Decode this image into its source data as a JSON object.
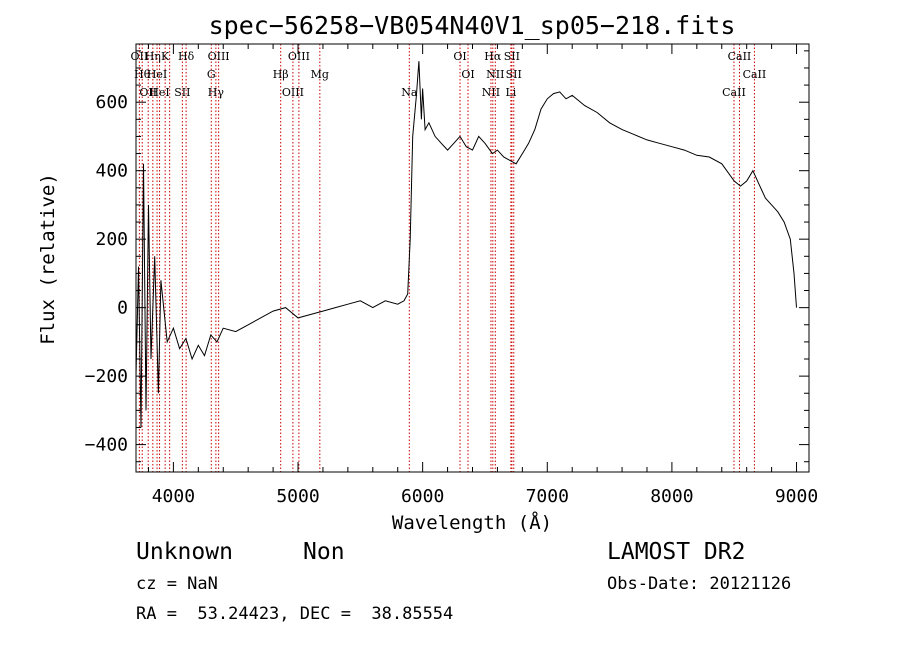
{
  "chart_data": {
    "type": "line",
    "title": "spec−56258−VB054N40V1_sp05−218.fits",
    "xlabel": "Wavelength (Å)",
    "ylabel": "Flux (relative)",
    "xlim": [
      3700,
      9100
    ],
    "ylim": [
      -480,
      770
    ],
    "xticks": [
      4000,
      5000,
      6000,
      7000,
      8000,
      9000
    ],
    "yticks": [
      -400,
      -200,
      0,
      200,
      400,
      600
    ],
    "ytick_labels": [
      "−400",
      "−200",
      "0",
      "200",
      "400",
      "600"
    ],
    "series": [
      {
        "x": [
          3700,
          3720,
          3740,
          3760,
          3780,
          3800,
          3820,
          3850,
          3880,
          3900,
          3950,
          4000,
          4050,
          4100,
          4150,
          4200,
          4250,
          4300,
          4350,
          4400,
          4500,
          4600,
          4700,
          4800,
          4900,
          5000,
          5100,
          5200,
          5300,
          5400,
          5500,
          5600,
          5700,
          5800,
          5850,
          5880,
          5900,
          5920,
          5950,
          5970,
          5990,
          6000,
          6020,
          6050,
          6100,
          6150,
          6200,
          6250,
          6300,
          6350,
          6400,
          6450,
          6500,
          6560,
          6600,
          6650,
          6700,
          6750,
          6800,
          6850,
          6900,
          6950,
          7000,
          7050,
          7100,
          7150,
          7200,
          7300,
          7400,
          7500,
          7600,
          7700,
          7800,
          7900,
          8000,
          8100,
          8200,
          8300,
          8400,
          8500,
          8550,
          8600,
          8650,
          8700,
          8750,
          8800,
          8850,
          8900,
          8950,
          8980,
          9000
        ],
        "y": [
          -200,
          120,
          -350,
          420,
          -300,
          300,
          -150,
          150,
          -250,
          80,
          -100,
          -60,
          -120,
          -90,
          -150,
          -110,
          -140,
          -80,
          -100,
          -60,
          -70,
          -50,
          -30,
          -10,
          0,
          -30,
          -20,
          -10,
          0,
          10,
          20,
          0,
          20,
          10,
          20,
          40,
          200,
          500,
          620,
          720,
          550,
          640,
          520,
          540,
          500,
          480,
          460,
          480,
          500,
          470,
          460,
          500,
          480,
          450,
          460,
          440,
          430,
          420,
          450,
          480,
          520,
          580,
          610,
          625,
          630,
          610,
          620,
          590,
          570,
          540,
          520,
          505,
          490,
          480,
          470,
          460,
          445,
          440,
          420,
          370,
          355,
          370,
          400,
          360,
          320,
          300,
          280,
          250,
          200,
          100,
          0
        ]
      }
    ],
    "lines": [
      {
        "x": 3727,
        "labels": [
          "OII"
        ]
      },
      {
        "x": 3750,
        "labels": [
          "Hθ"
        ]
      },
      {
        "x": 3798,
        "labels": [
          "OII"
        ]
      },
      {
        "x": 3835,
        "labels": [
          "Hη"
        ]
      },
      {
        "x": 3869,
        "labels": [
          "HeI"
        ]
      },
      {
        "x": 3889,
        "labels": [
          "HeI"
        ]
      },
      {
        "x": 3934,
        "labels": [
          "K"
        ]
      },
      {
        "x": 3970,
        "labels": []
      },
      {
        "x": 4072,
        "labels": [
          "SII"
        ]
      },
      {
        "x": 4102,
        "labels": [
          "Hδ"
        ]
      },
      {
        "x": 4304,
        "labels": [
          "G"
        ]
      },
      {
        "x": 4341,
        "labels": [
          "Hγ"
        ]
      },
      {
        "x": 4363,
        "labels": [
          "OIII"
        ]
      },
      {
        "x": 4861,
        "labels": [
          "Hβ"
        ]
      },
      {
        "x": 4959,
        "labels": [
          "OIII"
        ]
      },
      {
        "x": 5007,
        "labels": [
          "OIII"
        ]
      },
      {
        "x": 5175,
        "labels": [
          "Mg"
        ]
      },
      {
        "x": 5893,
        "labels": [
          "Na"
        ]
      },
      {
        "x": 6300,
        "labels": [
          "OI"
        ]
      },
      {
        "x": 6364,
        "labels": [
          "OI"
        ]
      },
      {
        "x": 6548,
        "labels": [
          "NII"
        ]
      },
      {
        "x": 6563,
        "labels": [
          "Hα"
        ]
      },
      {
        "x": 6583,
        "labels": [
          "NII"
        ]
      },
      {
        "x": 6708,
        "labels": [
          "Li"
        ]
      },
      {
        "x": 6716,
        "labels": [
          "SII"
        ]
      },
      {
        "x": 6731,
        "labels": [
          "SII"
        ]
      },
      {
        "x": 8498,
        "labels": [
          "CaII"
        ]
      },
      {
        "x": 8542,
        "labels": [
          "CaII"
        ]
      },
      {
        "x": 8662,
        "labels": [
          "CaII"
        ]
      }
    ]
  },
  "info": {
    "class_label": "Unknown",
    "subclass_label": "Non",
    "survey": "LAMOST DR2",
    "redshift_text": "cz = NaN",
    "obs_date_text": "Obs-Date: 20121126",
    "coords_text": "RA =  53.24423, DEC =  38.85554"
  },
  "colors": {
    "spectrum": "#000000",
    "line_markers": "#cc0000",
    "axes": "#000000"
  }
}
